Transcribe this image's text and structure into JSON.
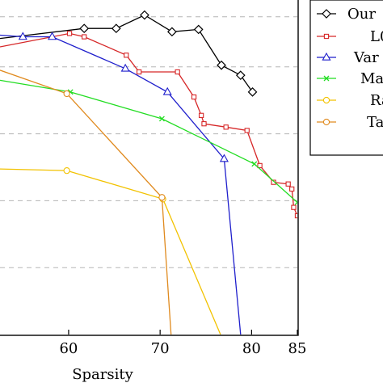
{
  "chart_data": {
    "type": "line",
    "xlabel": "Sparsity",
    "ylabel": "",
    "title": "",
    "xlim": [
      52.5,
      85
    ],
    "ylim": [
      0,
      100
    ],
    "x_ticks": [
      "60",
      "70",
      "80",
      "85"
    ],
    "x_tick_values": [
      60,
      70,
      80,
      85
    ],
    "y_grid_values": [
      20,
      40,
      60,
      80,
      95
    ],
    "grid": "horizontal dashed",
    "legend_position": "top-right",
    "series": [
      {
        "name": "Our",
        "color": "#000000",
        "marker": "diamond",
        "points": [
          [
            52.5,
            88.5
          ],
          [
            61.7,
            91.5
          ],
          [
            65.2,
            91.5
          ],
          [
            68.3,
            95.5
          ],
          [
            71.3,
            90.5
          ],
          [
            74.2,
            91.2
          ],
          [
            76.7,
            80.5
          ],
          [
            78.8,
            77.5
          ],
          [
            80.1,
            72.5
          ]
        ]
      },
      {
        "name": "L0",
        "color": "#d62728",
        "marker": "square",
        "points": [
          [
            52.5,
            86.0
          ],
          [
            60.1,
            90.0
          ],
          [
            61.7,
            89.0
          ],
          [
            66.3,
            83.5
          ],
          [
            67.7,
            78.5
          ],
          [
            71.9,
            78.5
          ],
          [
            73.7,
            71.0
          ],
          [
            74.5,
            65.5
          ],
          [
            74.8,
            63.0
          ],
          [
            77.2,
            62.0
          ],
          [
            79.5,
            61.0
          ],
          [
            80.9,
            50.5
          ],
          [
            82.4,
            45.5
          ],
          [
            84.0,
            45.0
          ],
          [
            84.4,
            43.5
          ],
          [
            84.6,
            38.0
          ],
          [
            85.0,
            35.5
          ]
        ]
      },
      {
        "name": "Variational",
        "color": "#1f1fcc",
        "marker": "triangle",
        "points": [
          [
            52.5,
            89.5
          ],
          [
            55.0,
            89.0
          ],
          [
            58.2,
            89.0
          ],
          [
            66.2,
            79.5
          ],
          [
            70.8,
            72.5
          ],
          [
            77.0,
            52.5
          ],
          [
            78.8,
            0.0
          ]
        ]
      },
      {
        "name": "Magnitude",
        "color": "#22dd22",
        "marker": "x",
        "points": [
          [
            52.5,
            76.0
          ],
          [
            60.2,
            72.5
          ],
          [
            70.2,
            64.5
          ],
          [
            80.3,
            51.0
          ],
          [
            85.0,
            39.5
          ]
        ]
      },
      {
        "name": "Random",
        "color": "#f2c200",
        "marker": "circle",
        "points": [
          [
            52.5,
            49.5
          ],
          [
            59.8,
            49.0
          ],
          [
            70.3,
            40.5
          ],
          [
            76.6,
            0.0
          ]
        ]
      },
      {
        "name": "Taylor",
        "color": "#e08a1e",
        "marker": "circle",
        "points": [
          [
            52.5,
            79.0
          ],
          [
            59.8,
            72.0
          ],
          [
            70.2,
            41.0
          ],
          [
            71.2,
            0.0
          ]
        ]
      }
    ],
    "legend_labels": [
      "Our",
      "L0",
      "Var",
      "Ma",
      "Ra",
      "Ta"
    ]
  }
}
